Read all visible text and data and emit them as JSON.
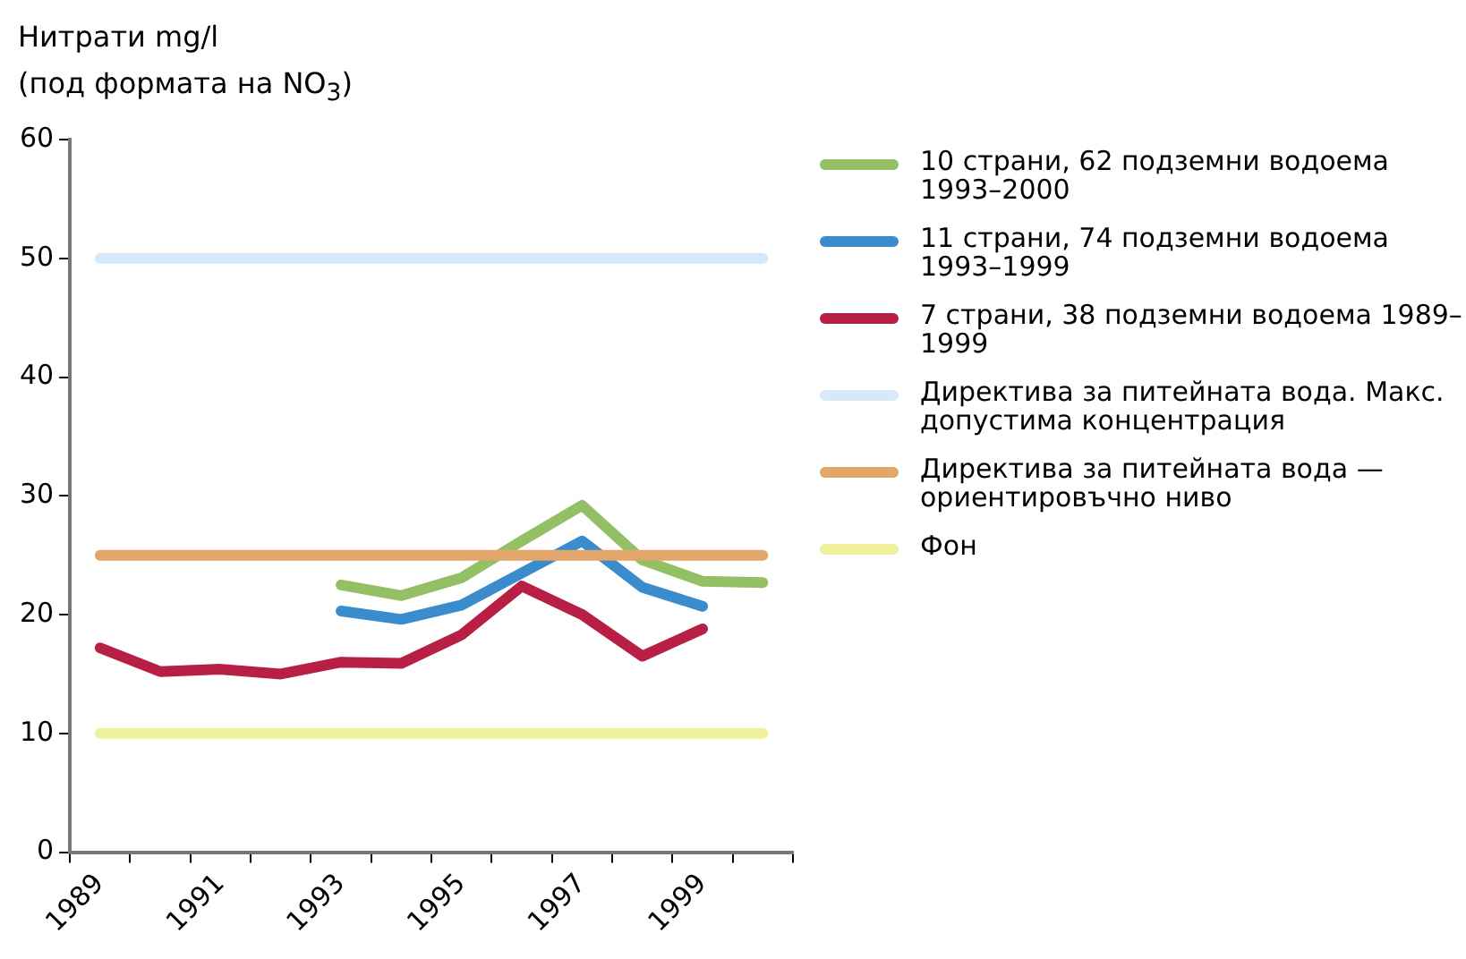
{
  "chart_data": {
    "type": "line",
    "ylabel": "Нитрати mg/l\n(под формата на NO$_{3}$)",
    "categories": [
      "1989",
      null,
      "1991",
      null,
      "1993",
      null,
      "1995",
      null,
      "1997",
      null,
      "1999",
      null
    ],
    "series": [
      {
        "name": "10 страни, 62 подземни водоема 1993–2000",
        "color": "#93c064",
        "values": [
          null,
          null,
          null,
          null,
          22.5,
          21.6,
          23.1,
          26.2,
          29.2,
          24.6,
          22.8,
          22.7
        ]
      },
      {
        "name": "11 страни, 74 подземни водоема 1993–1999",
        "color": "#3a8ccc",
        "values": [
          null,
          null,
          null,
          null,
          20.3,
          19.6,
          20.8,
          23.5,
          26.2,
          22.3,
          20.7,
          null
        ]
      },
      {
        "name": "7 страни, 38 подземни водоема 1989–1999",
        "color": "#b81f45",
        "values": [
          17.2,
          15.2,
          15.4,
          15.0,
          16.0,
          15.9,
          18.3,
          22.4,
          20.0,
          16.5,
          18.8,
          null
        ]
      },
      {
        "name": "Директива за питейната вода. Макс. допустима концентрация",
        "color": "#d6e8fa",
        "values": [
          50,
          50,
          50,
          50,
          50,
          50,
          50,
          50,
          50,
          50,
          50,
          50
        ]
      },
      {
        "name": "Директива за питейната вода — ориентировъчно ниво",
        "color": "#e2a66a",
        "values": [
          25,
          25,
          25,
          25,
          25,
          25,
          25,
          25,
          25,
          25,
          25,
          25
        ]
      },
      {
        "name": "Фон",
        "color": "#eef09a",
        "values": [
          10,
          10,
          10,
          10,
          10,
          10,
          10,
          10,
          10,
          10,
          10,
          10
        ]
      }
    ],
    "ylim": [
      0,
      60
    ],
    "yticks": [
      0,
      10,
      20,
      30,
      40,
      50,
      60
    ],
    "grid": false,
    "legend": "right",
    "marker": "none",
    "line_style": "solid"
  }
}
